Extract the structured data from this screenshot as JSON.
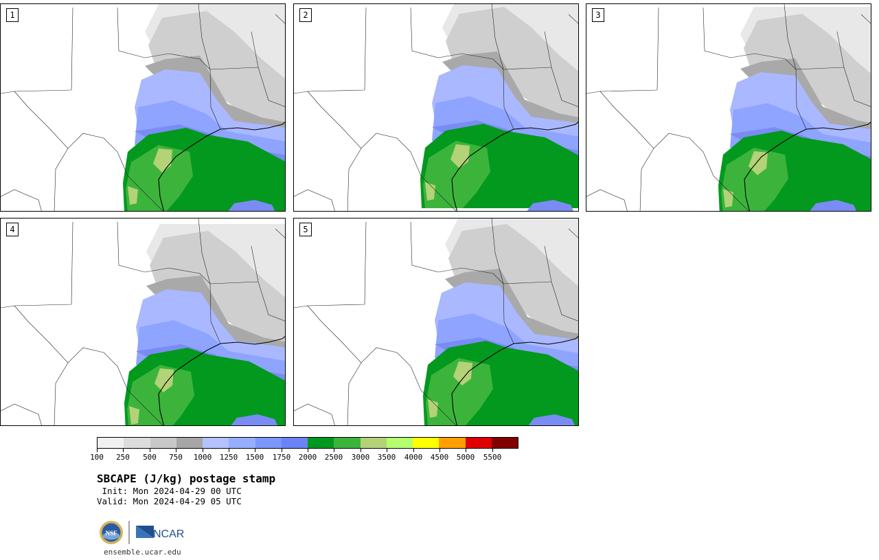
{
  "title": "SBCAPE (J/kg) postage stamp",
  "init": " Init: Mon 2024-04-29 00 UTC",
  "valid": "Valid: Mon 2024-04-29 05 UTC",
  "site": "ensemble.ucar.edu",
  "logos": {
    "nsf": "NSF",
    "ncar": "NCAR"
  },
  "members": [
    "1",
    "2",
    "3",
    "4",
    "5"
  ],
  "colorbar": {
    "unit": "J/kg",
    "colors": [
      "#f0f0f0",
      "#dcdcdc",
      "#c8c8c8",
      "#a6a6a6",
      "#b4c3ff",
      "#96aeff",
      "#7c96ff",
      "#6c82f8",
      "#00981f",
      "#3cb43c",
      "#b4d278",
      "#b4ff6e",
      "#ffff00",
      "#ffa000",
      "#e10000",
      "#820000"
    ],
    "tick_labels": [
      "100",
      "250",
      "500",
      "750",
      "1000",
      "1250",
      "1500",
      "1750",
      "2000",
      "2500",
      "3000",
      "3500",
      "4000",
      "4500",
      "5000",
      "5500"
    ]
  },
  "map_colors": {
    "gray_light": "#e8e8e8",
    "gray_mid": "#cfcfcf",
    "gray_dark": "#a9a9a9",
    "blue_light": "#aab8ff",
    "blue_mid": "#8ea4ff",
    "blue_dark": "#7a8cf4",
    "green_dark": "#03991f",
    "green_mid": "#3cb43c",
    "yellowgreen": "#b4d278"
  }
}
